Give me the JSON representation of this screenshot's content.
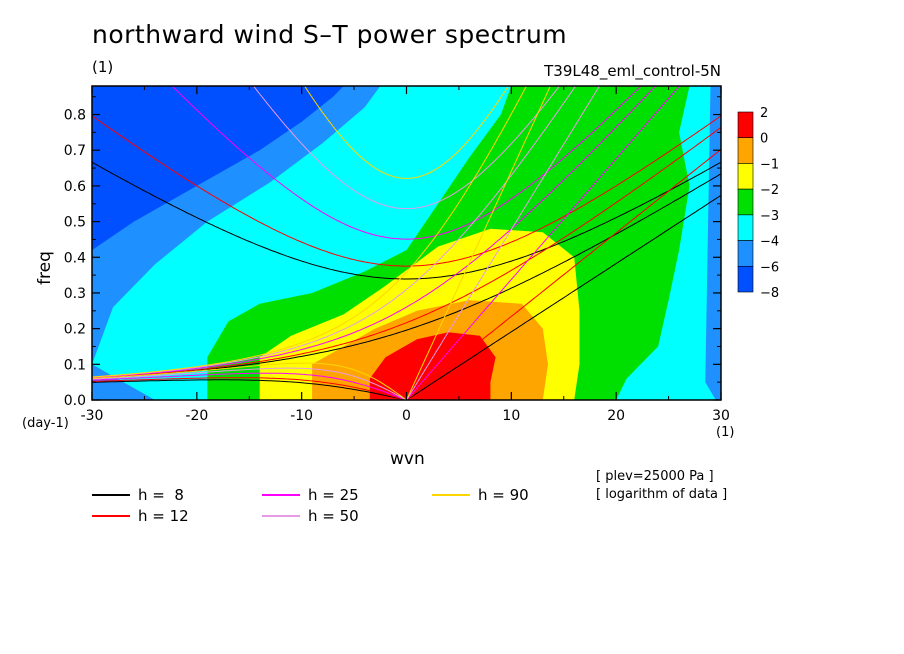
{
  "title": "northward wind S–T power spectrum",
  "subtitle": "(1)",
  "run_label": "T39L48_eml_control-5N",
  "notes": [
    "[ plev=25000 Pa ]",
    "[ logarithm of data ]"
  ],
  "chart_data": {
    "type": "heatmap",
    "xlabel": "wvn",
    "ylabel": "freq",
    "x_unit": "(1)",
    "y_unit": "(day-1)",
    "xlim": [
      -30,
      30
    ],
    "ylim": [
      0,
      0.88
    ],
    "x_ticks": [
      -30,
      -20,
      -10,
      0,
      10,
      20,
      30
    ],
    "y_ticks": [
      0.0,
      0.1,
      0.2,
      0.3,
      0.4,
      0.5,
      0.6,
      0.7,
      0.8
    ],
    "colorbar": {
      "levels": [
        2,
        0,
        -1,
        -2,
        -3,
        -4,
        -6,
        -8
      ],
      "colors": [
        "#ff0000",
        "#ffa500",
        "#ffff00",
        "#00e000",
        "#00ffff",
        "#1e90ff",
        "#0050ff"
      ]
    },
    "contour_regions_log_power": [
      {
        "range": "0 to 2",
        "color": "#ff0000",
        "region": "x -4 to 8, freq 0 to 0.19"
      },
      {
        "range": "-1 to 0",
        "color": "#ffa500",
        "region": "x -9 to 13, freq 0 to 0.28"
      },
      {
        "range": "-2 to -1",
        "color": "#ffff00",
        "region": "x -14 to 16, freq 0 to 0.48"
      },
      {
        "range": "-3 to -2",
        "color": "#00e000",
        "region": "x -19 to 27, freq 0 to 0.88"
      },
      {
        "range": "-4 to -3",
        "color": "#00ffff",
        "region": "x -28 to 30, freq 0 to 0.88"
      }
    ],
    "dispersion_curves": [
      {
        "name": "h =  8",
        "color": "#000000"
      },
      {
        "name": "h = 12",
        "color": "#ff0000"
      },
      {
        "name": "h = 25",
        "color": "#ff00ff"
      },
      {
        "name": "h = 50",
        "color": "#e69be6"
      },
      {
        "name": "h = 90",
        "color": "#ffd700"
      }
    ]
  }
}
